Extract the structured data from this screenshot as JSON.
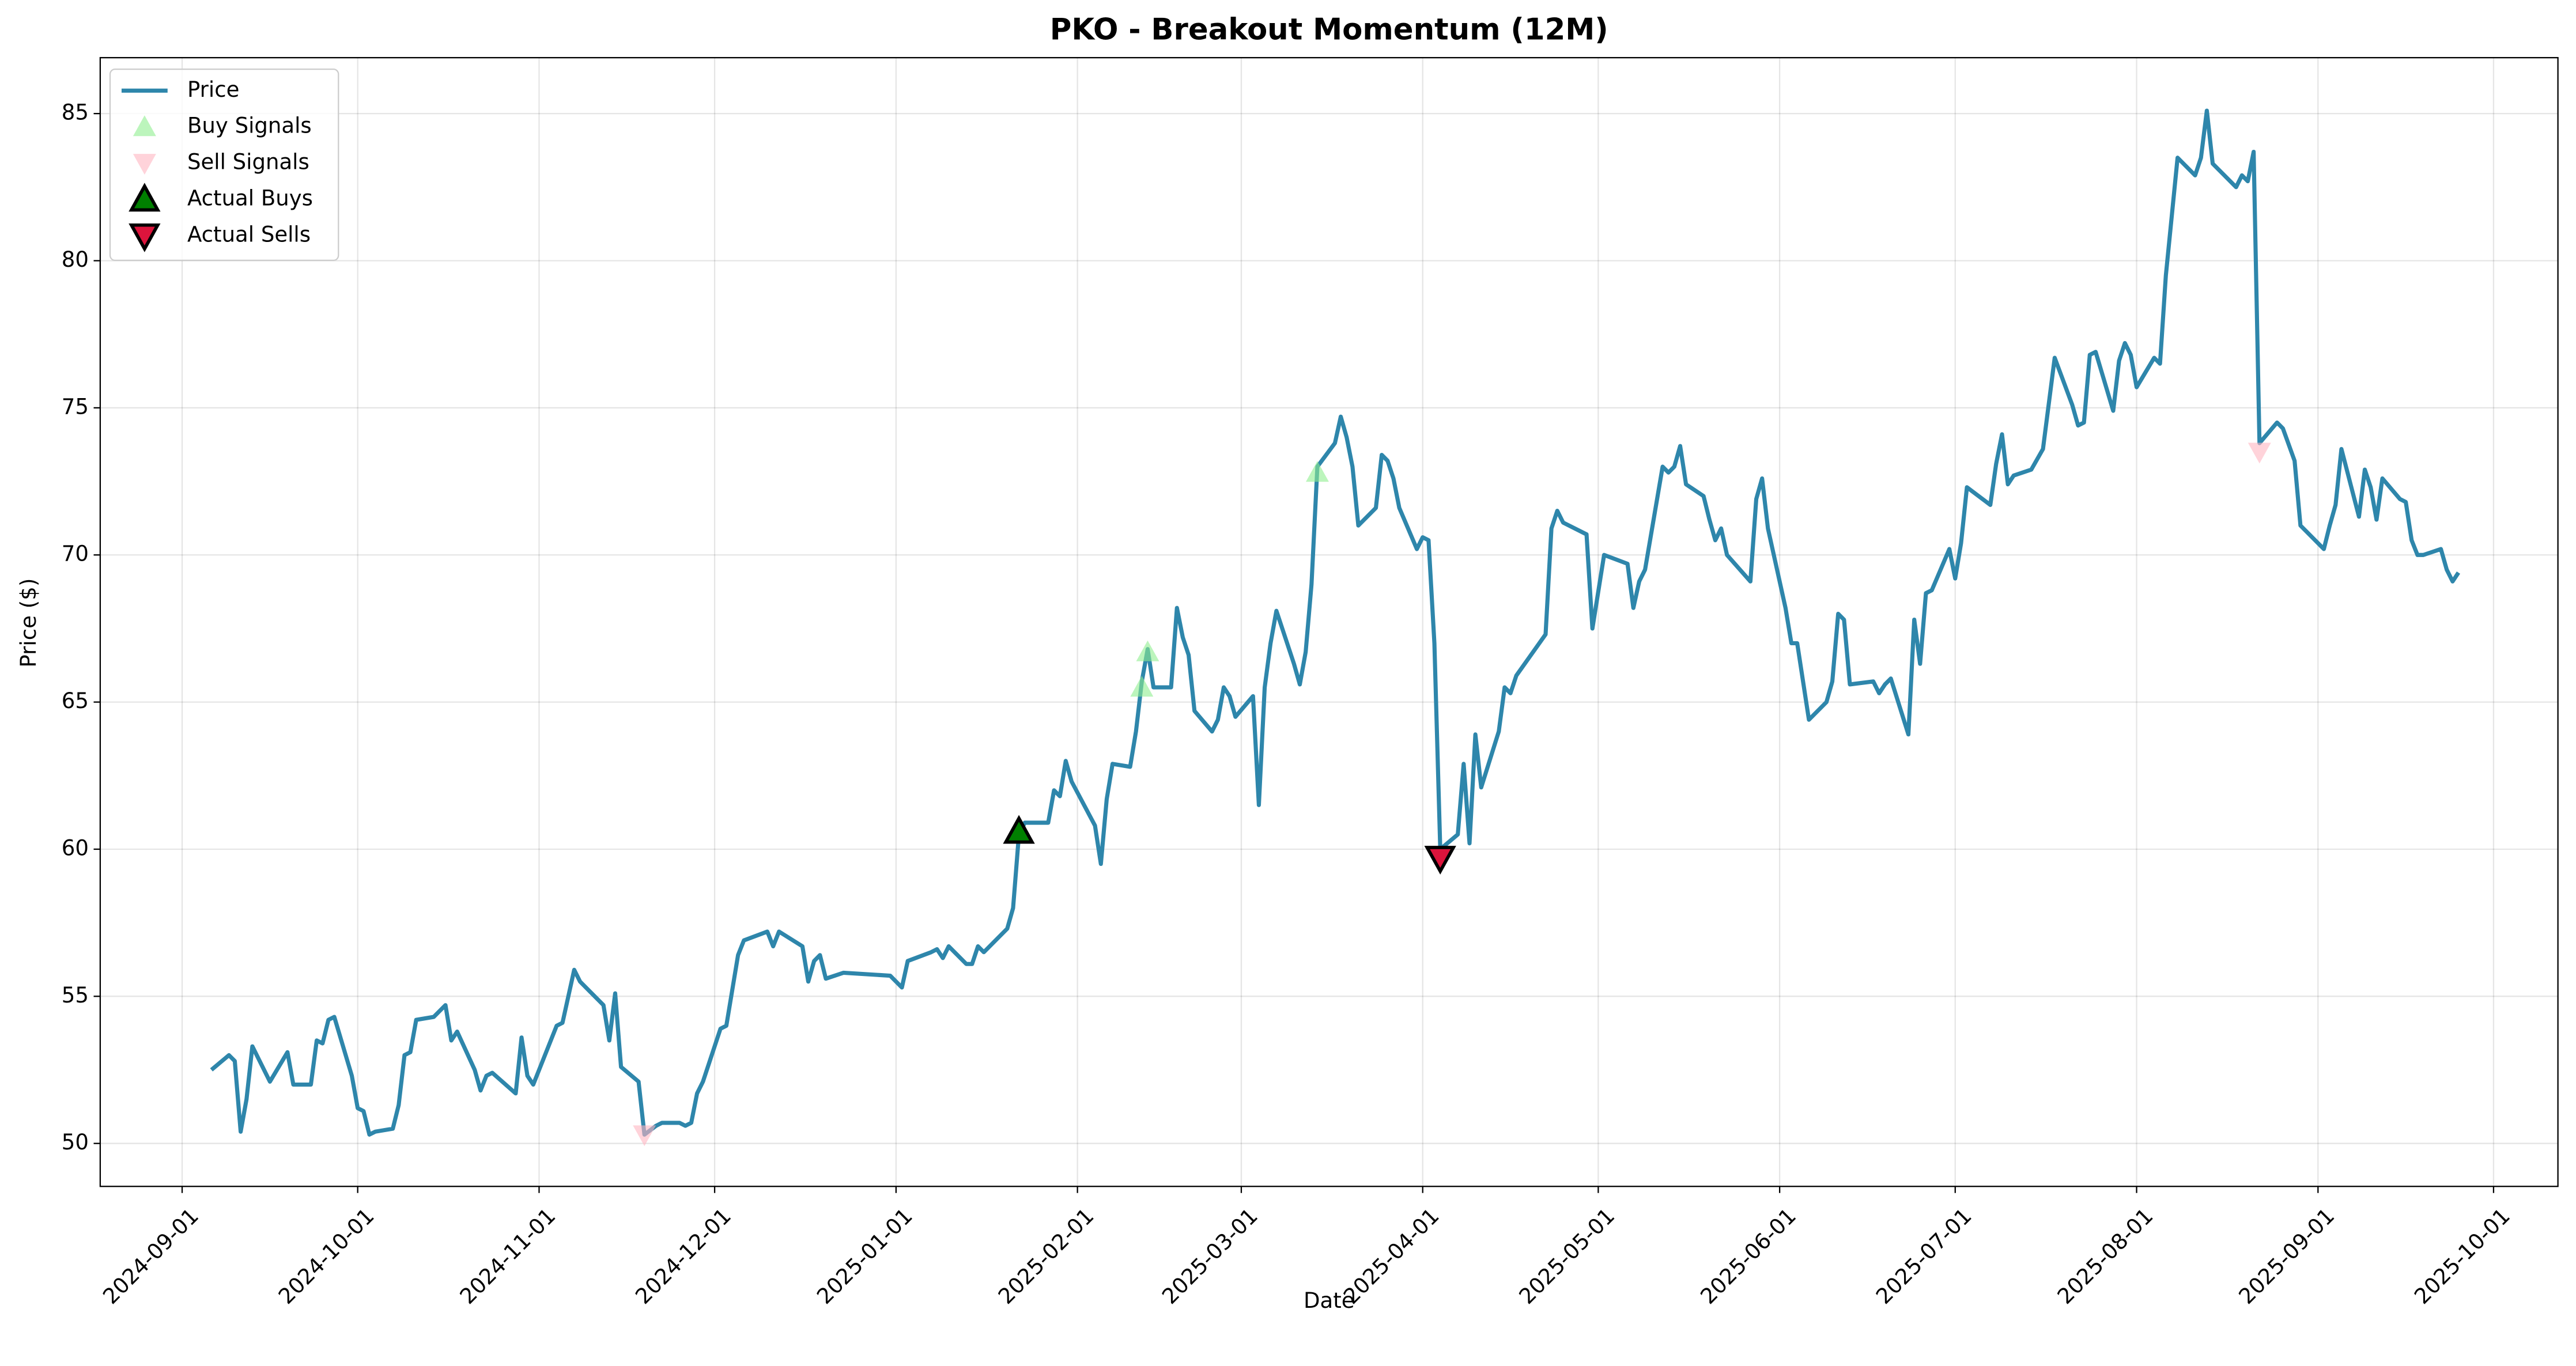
{
  "chart_data": {
    "type": "line",
    "title": "PKO - Breakout Momentum (12M)",
    "x_label": "Date",
    "y_label": "Price ($)",
    "xlim": [
      "2024-08-18",
      "2025-10-12"
    ],
    "xticks": [
      "2024-09-01",
      "2024-10-01",
      "2024-11-01",
      "2024-12-01",
      "2025-01-01",
      "2025-02-01",
      "2025-03-01",
      "2025-04-01",
      "2025-05-01",
      "2025-06-01",
      "2025-07-01",
      "2025-08-01",
      "2025-09-01",
      "2025-10-01"
    ],
    "ylim": [
      48.54,
      86.9
    ],
    "yticks": [
      50,
      55,
      60,
      65,
      70,
      75,
      80,
      85
    ],
    "grid": true,
    "legend": "upper left",
    "series": [
      {
        "name": "Price",
        "color": "#2e86ab",
        "marker": "line",
        "x": [
          "2024-09-06",
          "2024-09-09",
          "2024-09-10",
          "2024-09-11",
          "2024-09-12",
          "2024-09-13",
          "2024-09-16",
          "2024-09-19",
          "2024-09-20",
          "2024-09-23",
          "2024-09-24",
          "2024-09-25",
          "2024-09-26",
          "2024-09-27",
          "2024-09-30",
          "2024-10-01",
          "2024-10-02",
          "2024-10-03",
          "2024-10-04",
          "2024-10-07",
          "2024-10-08",
          "2024-10-09",
          "2024-10-10",
          "2024-10-11",
          "2024-10-14",
          "2024-10-16",
          "2024-10-17",
          "2024-10-18",
          "2024-10-21",
          "2024-10-22",
          "2024-10-23",
          "2024-10-24",
          "2024-10-28",
          "2024-10-29",
          "2024-10-30",
          "2024-10-31",
          "2024-11-04",
          "2024-11-05",
          "2024-11-07",
          "2024-11-08",
          "2024-11-12",
          "2024-11-13",
          "2024-11-14",
          "2024-11-15",
          "2024-11-18",
          "2024-11-19",
          "2024-11-21",
          "2024-11-22",
          "2024-11-25",
          "2024-11-26",
          "2024-11-27",
          "2024-11-28",
          "2024-11-29",
          "2024-12-02",
          "2024-12-03",
          "2024-12-05",
          "2024-12-06",
          "2024-12-10",
          "2024-12-11",
          "2024-12-12",
          "2024-12-16",
          "2024-12-17",
          "2024-12-18",
          "2024-12-19",
          "2024-12-20",
          "2024-12-23",
          "2024-12-31",
          "2025-01-02",
          "2025-01-03",
          "2025-01-07",
          "2025-01-08",
          "2025-01-09",
          "2025-01-10",
          "2025-01-13",
          "2025-01-14",
          "2025-01-15",
          "2025-01-16",
          "2025-01-20",
          "2025-01-21",
          "2025-01-22",
          "2025-01-23",
          "2025-01-24",
          "2025-01-27",
          "2025-01-28",
          "2025-01-29",
          "2025-01-30",
          "2025-01-31",
          "2025-02-04",
          "2025-02-05",
          "2025-02-06",
          "2025-02-07",
          "2025-02-10",
          "2025-02-11",
          "2025-02-12",
          "2025-02-13",
          "2025-02-14",
          "2025-02-17",
          "2025-02-18",
          "2025-02-19",
          "2025-02-20",
          "2025-02-21",
          "2025-02-24",
          "2025-02-25",
          "2025-02-26",
          "2025-02-27",
          "2025-02-28",
          "2025-03-03",
          "2025-03-04",
          "2025-03-05",
          "2025-03-06",
          "2025-03-07",
          "2025-03-10",
          "2025-03-11",
          "2025-03-12",
          "2025-03-13",
          "2025-03-14",
          "2025-03-17",
          "2025-03-18",
          "2025-03-19",
          "2025-03-20",
          "2025-03-21",
          "2025-03-24",
          "2025-03-25",
          "2025-03-26",
          "2025-03-27",
          "2025-03-28",
          "2025-03-31",
          "2025-04-01",
          "2025-04-02",
          "2025-04-03",
          "2025-04-04",
          "2025-04-07",
          "2025-04-08",
          "2025-04-09",
          "2025-04-10",
          "2025-04-11",
          "2025-04-14",
          "2025-04-15",
          "2025-04-16",
          "2025-04-17",
          "2025-04-22",
          "2025-04-23",
          "2025-04-24",
          "2025-04-25",
          "2025-04-29",
          "2025-04-30",
          "2025-05-02",
          "2025-05-06",
          "2025-05-07",
          "2025-05-08",
          "2025-05-09",
          "2025-05-12",
          "2025-05-13",
          "2025-05-14",
          "2025-05-15",
          "2025-05-16",
          "2025-05-19",
          "2025-05-20",
          "2025-05-21",
          "2025-05-22",
          "2025-05-23",
          "2025-05-27",
          "2025-05-28",
          "2025-05-29",
          "2025-05-30",
          "2025-06-02",
          "2025-06-03",
          "2025-06-04",
          "2025-06-06",
          "2025-06-09",
          "2025-06-10",
          "2025-06-11",
          "2025-06-12",
          "2025-06-13",
          "2025-06-17",
          "2025-06-18",
          "2025-06-19",
          "2025-06-20",
          "2025-06-23",
          "2025-06-24",
          "2025-06-25",
          "2025-06-26",
          "2025-06-27",
          "2025-06-30",
          "2025-07-01",
          "2025-07-02",
          "2025-07-03",
          "2025-07-07",
          "2025-07-08",
          "2025-07-09",
          "2025-07-10",
          "2025-07-11",
          "2025-07-14",
          "2025-07-16",
          "2025-07-18",
          "2025-07-21",
          "2025-07-22",
          "2025-07-23",
          "2025-07-24",
          "2025-07-25",
          "2025-07-28",
          "2025-07-29",
          "2025-07-30",
          "2025-07-31",
          "2025-08-01",
          "2025-08-04",
          "2025-08-05",
          "2025-08-06",
          "2025-08-08",
          "2025-08-11",
          "2025-08-12",
          "2025-08-13",
          "2025-08-14",
          "2025-08-18",
          "2025-08-19",
          "2025-08-20",
          "2025-08-21",
          "2025-08-22",
          "2025-08-25",
          "2025-08-26",
          "2025-08-28",
          "2025-08-29",
          "2025-09-02",
          "2025-09-03",
          "2025-09-04",
          "2025-09-05",
          "2025-09-08",
          "2025-09-09",
          "2025-09-10",
          "2025-09-11",
          "2025-09-12",
          "2025-09-15",
          "2025-09-16",
          "2025-09-17",
          "2025-09-18",
          "2025-09-19",
          "2025-09-22",
          "2025-09-23",
          "2025-09-24",
          "2025-09-25"
        ],
        "values": [
          52.5,
          53.0,
          52.8,
          50.4,
          51.5,
          53.3,
          52.1,
          53.1,
          52.0,
          52.0,
          53.5,
          53.4,
          54.2,
          54.3,
          52.3,
          51.2,
          51.1,
          50.3,
          50.4,
          50.5,
          51.3,
          53.0,
          53.1,
          54.2,
          54.3,
          54.7,
          53.5,
          53.8,
          52.5,
          51.8,
          52.3,
          52.4,
          51.7,
          53.6,
          52.3,
          52.0,
          54.0,
          54.1,
          55.9,
          55.5,
          54.7,
          53.5,
          55.1,
          52.6,
          52.1,
          50.3,
          50.6,
          50.7,
          50.7,
          50.6,
          50.7,
          51.7,
          52.1,
          53.9,
          54.0,
          56.4,
          56.9,
          57.2,
          56.7,
          57.2,
          56.7,
          55.5,
          56.2,
          56.4,
          55.6,
          55.8,
          55.7,
          55.3,
          56.2,
          56.5,
          56.6,
          56.3,
          56.7,
          56.1,
          56.1,
          56.7,
          56.5,
          57.3,
          58.0,
          60.5,
          60.9,
          60.9,
          60.9,
          62.0,
          61.8,
          63.0,
          62.3,
          60.8,
          59.5,
          61.7,
          62.9,
          62.8,
          64.0,
          65.7,
          66.8,
          65.5,
          65.5,
          68.2,
          67.2,
          66.6,
          64.7,
          64.0,
          64.4,
          65.5,
          65.2,
          64.5,
          65.2,
          61.5,
          65.5,
          67.0,
          68.1,
          66.3,
          65.6,
          66.7,
          69.0,
          73.0,
          73.8,
          74.7,
          74.0,
          73.0,
          71.0,
          71.6,
          73.4,
          73.2,
          72.6,
          71.6,
          70.2,
          70.6,
          70.5,
          67.0,
          60.0,
          60.5,
          62.9,
          60.2,
          63.9,
          62.1,
          64.0,
          65.5,
          65.3,
          65.9,
          67.3,
          70.9,
          71.5,
          71.1,
          70.7,
          67.5,
          70.0,
          69.7,
          68.2,
          69.1,
          69.5,
          73.0,
          72.8,
          73.0,
          73.7,
          72.4,
          72.0,
          71.2,
          70.5,
          70.9,
          70.0,
          69.1,
          71.9,
          72.6,
          70.9,
          68.2,
          67.0,
          67.0,
          64.4,
          65.0,
          65.7,
          68.0,
          67.8,
          65.6,
          65.7,
          65.3,
          65.6,
          65.8,
          63.9,
          67.8,
          66.3,
          68.7,
          68.8,
          70.2,
          69.2,
          70.4,
          72.3,
          71.7,
          73.1,
          74.1,
          72.4,
          72.7,
          72.9,
          73.6,
          76.7,
          75.1,
          74.4,
          74.5,
          76.8,
          76.9,
          74.9,
          76.6,
          77.2,
          76.8,
          75.7,
          76.7,
          76.5,
          79.5,
          83.5,
          82.9,
          83.5,
          85.1,
          83.3,
          82.5,
          82.9,
          82.7,
          83.7,
          73.8,
          74.5,
          74.3,
          73.2,
          71.0,
          70.2,
          71.0,
          71.7,
          73.6,
          71.3,
          72.9,
          72.3,
          71.2,
          72.6,
          71.9,
          71.8,
          70.5,
          70.0,
          70.0,
          70.2,
          69.5,
          69.1,
          69.4
        ]
      },
      {
        "name": "Buy Signals",
        "color": "#90ee90",
        "marker": "triangle-up",
        "x": [
          "2025-02-12",
          "2025-02-13",
          "2025-03-14"
        ],
        "values": [
          65.5,
          66.7,
          72.8
        ]
      },
      {
        "name": "Sell Signals",
        "color": "#ffb6c1",
        "marker": "triangle-down",
        "x": [
          "2024-11-19",
          "2025-08-22"
        ],
        "values": [
          50.3,
          73.5
        ]
      },
      {
        "name": "Actual Buys",
        "color": "#008000",
        "marker": "triangle-up-edged",
        "x": [
          "2025-01-22"
        ],
        "values": [
          60.6
        ]
      },
      {
        "name": "Actual Sells",
        "color": "#dc143c",
        "marker": "triangle-down-edged",
        "x": [
          "2025-04-04"
        ],
        "values": [
          59.7
        ]
      }
    ]
  }
}
